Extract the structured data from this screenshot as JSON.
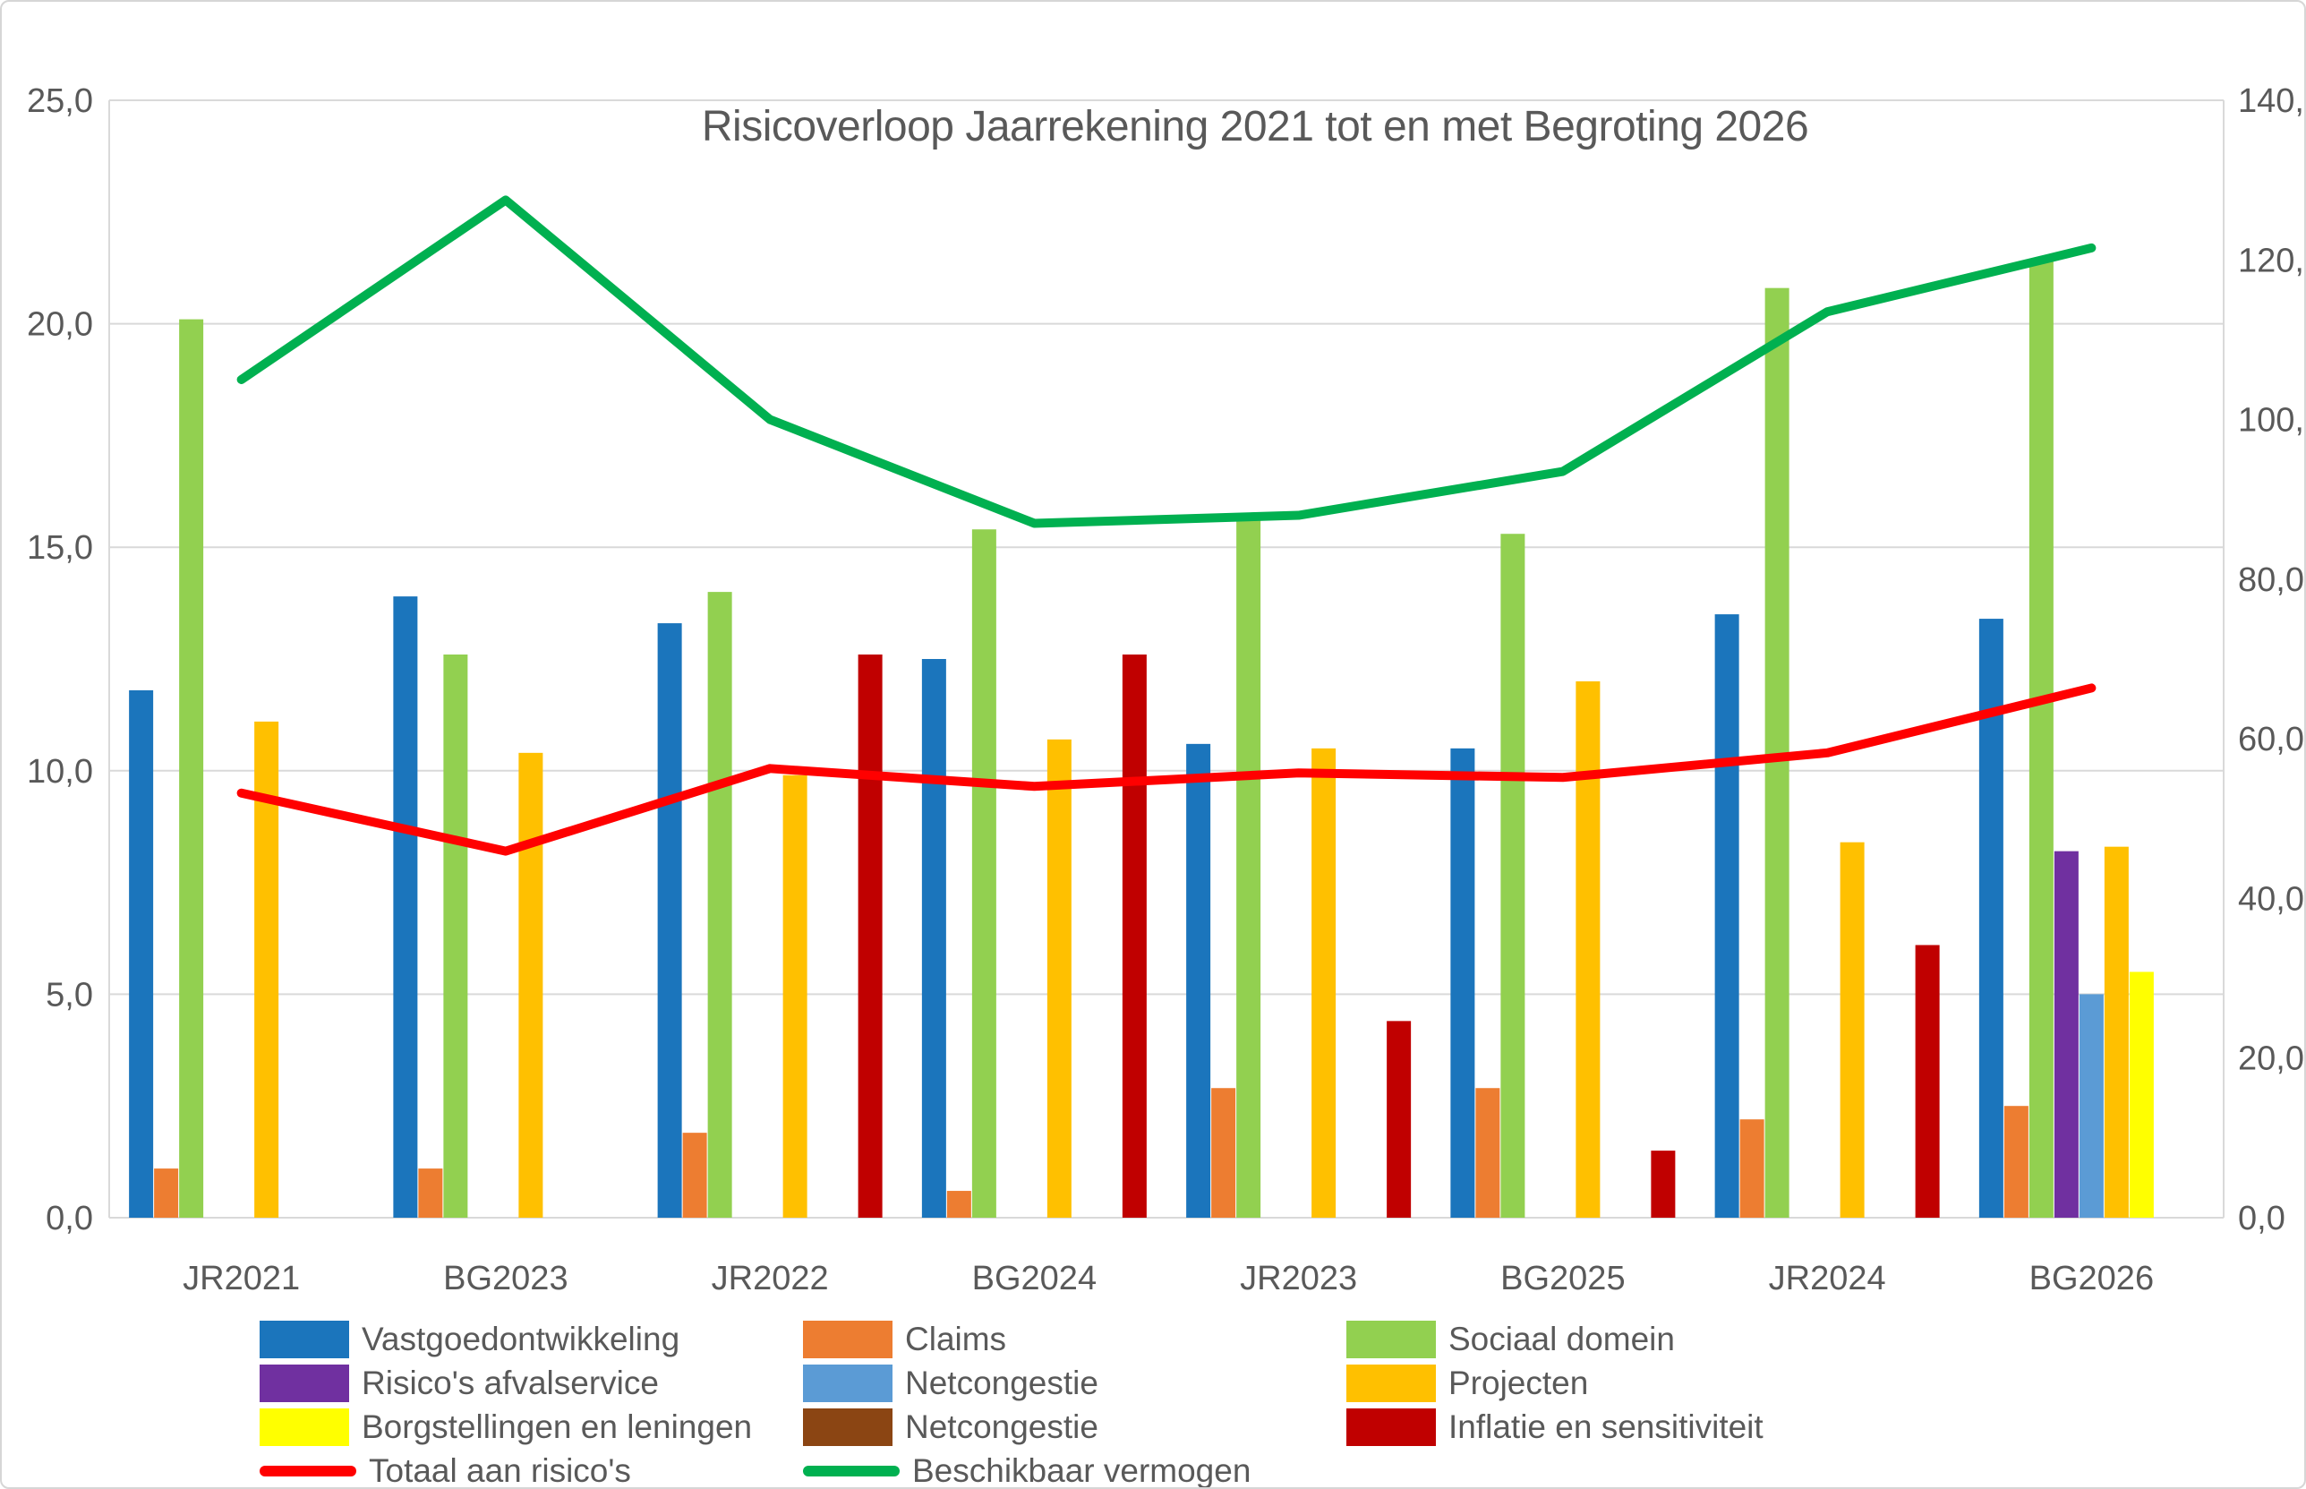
{
  "figure": {
    "background": "#ffffff",
    "border_color": "#d6d6d6",
    "text_color": "#595959",
    "gridline_color": "#d9d9d9"
  },
  "chart_data": {
    "type": "bar",
    "title": "Risicoverloop Jaarrekening 2021 tot en met Begroting 2026",
    "categories": [
      "JR2021",
      "BG2023",
      "JR2022",
      "BG2024",
      "JR2023",
      "BG2025",
      "JR2024",
      "BG2026"
    ],
    "left_axis": {
      "min": 0,
      "max": 25,
      "step": 5,
      "decimal_comma": true
    },
    "right_axis": {
      "min": 0,
      "max": 140,
      "step": 20,
      "decimal_comma": true
    },
    "grid": "horizontal",
    "legend_position": "bottom",
    "series": [
      {
        "name": "Vastgoedontwikkeling",
        "kind": "bar",
        "color": "#1B75BC",
        "axis": "left",
        "values": [
          11.8,
          13.9,
          13.3,
          12.5,
          10.6,
          10.5,
          13.5,
          13.4
        ]
      },
      {
        "name": "Claims",
        "kind": "bar",
        "color": "#ED7D31",
        "axis": "left",
        "values": [
          1.1,
          1.1,
          1.9,
          0.6,
          2.9,
          2.9,
          2.2,
          2.5
        ]
      },
      {
        "name": "Sociaal domein",
        "kind": "bar",
        "color": "#92D050",
        "axis": "left",
        "values": [
          20.1,
          12.6,
          14.0,
          15.4,
          15.6,
          15.3,
          20.8,
          21.4
        ]
      },
      {
        "name": "Risico's afvalservice",
        "kind": "bar",
        "color": "#7030A0",
        "axis": "left",
        "values": [
          0,
          0,
          0,
          0,
          0,
          0,
          0,
          8.2
        ]
      },
      {
        "name": "Netcongestie",
        "kind": "bar",
        "color": "#5B9BD5",
        "axis": "left",
        "values": [
          0,
          0,
          0,
          0,
          0,
          0,
          0,
          5.0
        ]
      },
      {
        "name": "Projecten",
        "kind": "bar",
        "color": "#FFC000",
        "axis": "left",
        "values": [
          11.1,
          10.4,
          9.9,
          10.7,
          10.5,
          12.0,
          8.4,
          8.3
        ]
      },
      {
        "name": "Borgstellingen en leningen",
        "kind": "bar",
        "color": "#FFFF00",
        "axis": "left",
        "values": [
          0,
          0,
          0,
          0,
          0,
          0,
          0,
          5.5
        ]
      },
      {
        "name": "Netcongestie",
        "kind": "bar",
        "color": "#8B4513",
        "axis": "left",
        "values": [
          0,
          0,
          0,
          0,
          0,
          0,
          0,
          0
        ]
      },
      {
        "name": "Inflatie en sensitiviteit",
        "kind": "bar",
        "color": "#C00000",
        "axis": "left",
        "values": [
          0,
          0,
          12.6,
          12.6,
          4.4,
          1.5,
          6.1,
          0
        ]
      },
      {
        "name": "Totaal aan risico's",
        "kind": "line",
        "color": "#FF0000",
        "axis": "left",
        "values": [
          9.5,
          8.2,
          10.05,
          9.65,
          9.95,
          9.85,
          10.4,
          11.85
        ]
      },
      {
        "name": "Beschikbaar vermogen",
        "kind": "line",
        "color": "#00B050",
        "axis": "right",
        "values": [
          105,
          127.5,
          100,
          87,
          88,
          93.5,
          113.5,
          121.5
        ]
      }
    ]
  }
}
